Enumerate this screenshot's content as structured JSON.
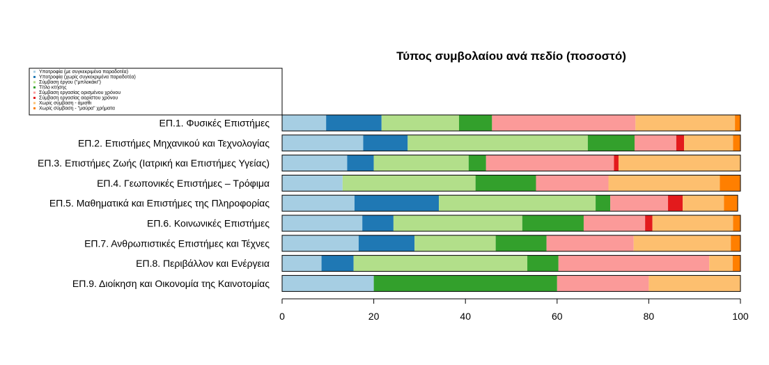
{
  "chart_data": {
    "type": "bar",
    "orientation": "horizontal",
    "stacked": true,
    "title": "Τύπος συμβολαίου ανά πεδίο (ποσοστό)",
    "xlabel": "",
    "ylabel": "",
    "xlim": [
      0,
      100
    ],
    "xticks": [
      0,
      20,
      40,
      60,
      80,
      100
    ],
    "legend_position": "top-left",
    "categories": [
      "ΕΠ.1. Φυσικές Επιστήμες",
      "ΕΠ.2. Επιστήμες Μηχανικού και Τεχνολογίας",
      "ΕΠ.3. Επιστήμες Ζωής (Ιατρική και Επιστήμες Υγείας)",
      "ΕΠ.4. Γεωπονικές Επιστήμες – Τρόφιμα",
      "ΕΠ.5. Μαθηματικά και Επιστήμες της Πληροφορίας",
      "ΕΠ.6. Κοινωνικές Επιστήμες",
      "ΕΠ.7. Ανθρωπιστικές Επιστήμες και Τέχνες",
      "ΕΠ.8. Περιβάλλον και Ενέργεια",
      "ΕΠ.9. Διοίκηση και Οικονομία της Καινοτομίας"
    ],
    "series": [
      {
        "name": "Υποτροφία (με συγκεκριμένα παραδοτέα)",
        "color": "#a6cee3",
        "values": [
          9.6,
          17.7,
          14.2,
          13.2,
          15.8,
          17.5,
          16.7,
          8.6,
          20.0
        ]
      },
      {
        "name": "Υποτροφία (χωρίς συγκεκριμένα παραδοτέα)",
        "color": "#1f78b4",
        "values": [
          12.1,
          9.7,
          5.8,
          0,
          18.4,
          6.8,
          12.2,
          7.0,
          0
        ]
      },
      {
        "name": "Σύμβαση έργου (\"μπλοκάκι\")",
        "color": "#b2df8a",
        "values": [
          16.9,
          39.3,
          20.7,
          29.0,
          34.2,
          28.1,
          17.7,
          37.9,
          0
        ]
      },
      {
        "name": "Τίτλο κτήσης",
        "color": "#33a02c",
        "values": [
          7.2,
          10.2,
          3.8,
          13.2,
          3.2,
          13.4,
          11.1,
          6.8,
          40.0
        ]
      },
      {
        "name": "Σύμβαση εργασίας ορισμένου χρόνου",
        "color": "#fb9a99",
        "values": [
          31.3,
          9.1,
          27.9,
          15.8,
          12.6,
          13.4,
          19.0,
          32.9,
          20.0
        ]
      },
      {
        "name": "Σύμβαση εργασίας αορίστου χρόνου",
        "color": "#e31a1c",
        "values": [
          0,
          1.7,
          1.0,
          0,
          3.2,
          1.6,
          0,
          0,
          0
        ]
      },
      {
        "name": "Χωρίς σύμβαση - άμισθι",
        "color": "#fdbf6f",
        "values": [
          21.7,
          10.7,
          26.6,
          24.3,
          9.0,
          17.6,
          21.2,
          5.1,
          20.0
        ]
      },
      {
        "name": "Χωρίς σύμβαση - \"μαύρα\" χρήματα",
        "color": "#ff7f00",
        "values": [
          1.2,
          1.6,
          0,
          4.5,
          3.0,
          1.6,
          2.1,
          1.7,
          0
        ]
      }
    ]
  }
}
